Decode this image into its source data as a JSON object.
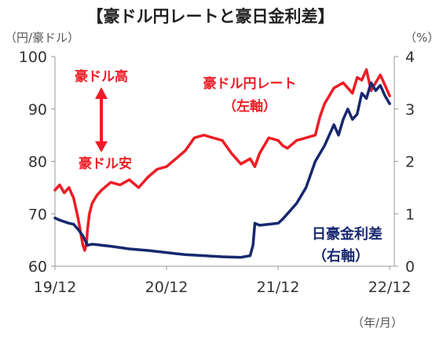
{
  "chart_data": {
    "type": "line",
    "title": "【豪ドル円レートと豪日金利差】",
    "left_unit": "（円/豪ドル）",
    "right_unit": "（%）",
    "x_unit": "（年/月）",
    "x_tick_labels": [
      "19/12",
      "20/12",
      "21/12",
      "22/12"
    ],
    "x_ticks": [
      0,
      12,
      24,
      36
    ],
    "y_left_ticks": [
      60,
      70,
      80,
      90,
      100
    ],
    "y_right_ticks": [
      0,
      1,
      2,
      3,
      4
    ],
    "ylim_left": [
      60,
      100
    ],
    "ylim_right": [
      0,
      4
    ],
    "xlim": [
      0,
      36.5
    ],
    "grid": false,
    "series": [
      {
        "name": "豪ドル円レート（左軸）",
        "axis": "left",
        "color": "#ee1c25",
        "x": [
          0,
          0.5,
          1,
          1.5,
          2,
          2.5,
          3,
          3.2,
          3.4,
          3.5,
          3.7,
          4,
          4.5,
          5,
          6,
          7,
          8,
          9,
          10,
          11,
          12,
          13,
          14,
          15,
          16,
          17,
          18,
          19,
          20,
          21,
          21.5,
          22,
          23,
          24,
          24.5,
          25,
          26,
          27,
          28,
          28.5,
          29,
          30,
          31,
          32,
          32.5,
          33,
          33.5,
          34,
          34.5,
          35,
          35.5,
          36
        ],
        "values": [
          74.5,
          75.5,
          74.0,
          75.0,
          73.0,
          69.0,
          64.0,
          63.0,
          64.5,
          67.0,
          70.0,
          72.0,
          73.5,
          74.5,
          76.0,
          75.5,
          76.5,
          75.0,
          77.0,
          78.5,
          79.0,
          80.5,
          82.0,
          84.5,
          85.0,
          84.5,
          84.0,
          81.5,
          79.5,
          80.5,
          79.0,
          81.5,
          84.5,
          84.0,
          83.0,
          82.5,
          84.0,
          84.5,
          85.0,
          88.5,
          91.0,
          94.0,
          95.0,
          93.0,
          96.0,
          95.5,
          97.5,
          93.5,
          95.0,
          96.5,
          94.5,
          92.5
        ]
      },
      {
        "name": "日豪金利差（右軸）",
        "axis": "right",
        "color": "#17286e",
        "x": [
          0,
          0.5,
          1,
          1.5,
          2,
          2.5,
          3,
          3.5,
          4,
          6,
          8,
          10,
          12,
          13,
          14,
          16,
          18,
          20,
          21,
          21.3,
          21.5,
          22,
          23,
          24,
          24.5,
          25,
          26,
          27,
          28,
          29,
          30,
          30.5,
          31,
          31.5,
          32,
          32.5,
          33,
          33.5,
          34,
          34.5,
          35,
          35.5,
          36
        ],
        "values": [
          0.92,
          0.88,
          0.85,
          0.82,
          0.8,
          0.7,
          0.58,
          0.4,
          0.42,
          0.38,
          0.33,
          0.3,
          0.26,
          0.24,
          0.22,
          0.2,
          0.18,
          0.17,
          0.2,
          0.4,
          0.82,
          0.78,
          0.8,
          0.82,
          0.9,
          1.0,
          1.2,
          1.5,
          2.0,
          2.3,
          2.7,
          2.5,
          2.8,
          3.0,
          2.8,
          2.9,
          3.3,
          3.2,
          3.5,
          3.35,
          3.45,
          3.25,
          3.1
        ]
      }
    ],
    "annotations": {
      "rate_label_1": "豪ドル円レート",
      "rate_label_2": "（左軸）",
      "spread_label_1": "日豪金利差",
      "spread_label_2": "（右軸）",
      "aud_high": "豪ドル高",
      "aud_low": "豪ドル安"
    }
  }
}
